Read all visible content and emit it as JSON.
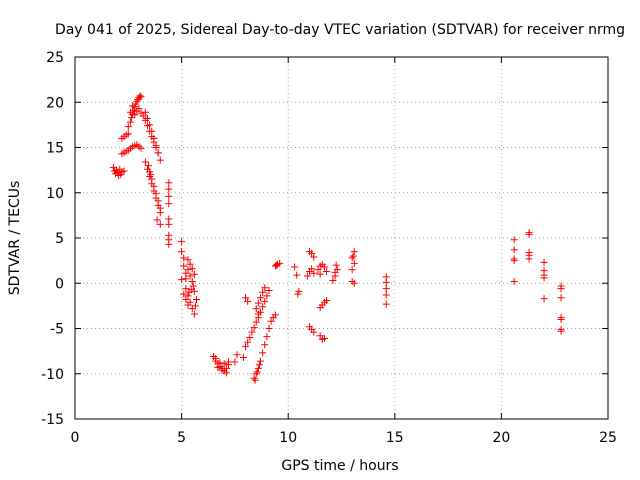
{
  "chart_data": {
    "type": "scatter",
    "title": "Day 041 of 2025, Sidereal Day-to-day VTEC variation (SDTVAR) for receiver nrmg",
    "xlabel": "GPS time / hours",
    "ylabel": "SDTVAR / TECUs",
    "xlim": [
      0,
      25
    ],
    "ylim": [
      -15,
      25
    ],
    "x_ticks": [
      0,
      5,
      10,
      15,
      20,
      25
    ],
    "y_ticks": [
      -15,
      -10,
      -5,
      0,
      5,
      10,
      15,
      20,
      25
    ],
    "x_tick_labels": [
      "0",
      "5",
      "10",
      "15",
      "20",
      "25"
    ],
    "y_tick_labels": [
      "-15",
      "-10",
      "-5",
      "0",
      "5",
      "10",
      "15",
      "20",
      "25"
    ],
    "grid": true,
    "marker": "plus",
    "colors": {
      "series": "#ff0000",
      "frame": "#000000",
      "grid": "#a0a0a0",
      "background": "#ffffff"
    },
    "series": [
      {
        "name": "SDTVAR",
        "points": [
          [
            1.8,
            12.8
          ],
          [
            1.85,
            12.4
          ],
          [
            1.9,
            12.1
          ],
          [
            1.95,
            12.5
          ],
          [
            2.0,
            12.2
          ],
          [
            2.05,
            11.9
          ],
          [
            2.1,
            12.6
          ],
          [
            2.15,
            12.0
          ],
          [
            2.2,
            12.3
          ],
          [
            2.3,
            12.4
          ],
          [
            2.2,
            14.3
          ],
          [
            2.3,
            14.4
          ],
          [
            2.4,
            14.6
          ],
          [
            2.5,
            14.7
          ],
          [
            2.6,
            14.9
          ],
          [
            2.7,
            15.1
          ],
          [
            2.8,
            15.2
          ],
          [
            2.9,
            15.3
          ],
          [
            3.0,
            15.1
          ],
          [
            3.1,
            14.9
          ],
          [
            2.2,
            16.0
          ],
          [
            2.3,
            16.2
          ],
          [
            2.4,
            16.4
          ],
          [
            2.5,
            16.5
          ],
          [
            2.5,
            17.3
          ],
          [
            2.6,
            17.8
          ],
          [
            2.65,
            18.3
          ],
          [
            2.7,
            18.7
          ],
          [
            2.75,
            19.1
          ],
          [
            2.8,
            19.5
          ],
          [
            2.85,
            19.8
          ],
          [
            2.9,
            20.1
          ],
          [
            2.95,
            20.3
          ],
          [
            3.0,
            20.5
          ],
          [
            3.05,
            20.7
          ],
          [
            3.1,
            20.6
          ],
          [
            2.6,
            18.9
          ],
          [
            2.7,
            19.6
          ],
          [
            2.8,
            18.6
          ],
          [
            2.9,
            19.0
          ],
          [
            3.0,
            19.3
          ],
          [
            3.1,
            18.8
          ],
          [
            3.2,
            18.5
          ],
          [
            3.3,
            18.0
          ],
          [
            3.4,
            17.4
          ],
          [
            3.5,
            16.8
          ],
          [
            3.6,
            16.2
          ],
          [
            3.7,
            15.6
          ],
          [
            3.8,
            15.0
          ],
          [
            3.9,
            14.4
          ],
          [
            3.3,
            18.9
          ],
          [
            3.4,
            18.2
          ],
          [
            3.5,
            17.5
          ],
          [
            3.6,
            16.8
          ],
          [
            3.7,
            16.0
          ],
          [
            3.8,
            15.2
          ],
          [
            3.9,
            14.4
          ],
          [
            4.0,
            13.6
          ],
          [
            3.3,
            13.4
          ],
          [
            3.4,
            12.6
          ],
          [
            3.5,
            11.8
          ],
          [
            3.6,
            11.0
          ],
          [
            3.7,
            10.2
          ],
          [
            3.8,
            9.4
          ],
          [
            3.9,
            8.6
          ],
          [
            4.0,
            7.8
          ],
          [
            3.85,
            7.0
          ],
          [
            4.0,
            6.5
          ],
          [
            3.5,
            12.3
          ],
          [
            3.6,
            11.5
          ],
          [
            3.7,
            10.7
          ],
          [
            3.8,
            9.9
          ],
          [
            3.9,
            9.1
          ],
          [
            4.0,
            8.3
          ],
          [
            3.45,
            13.0
          ],
          [
            3.55,
            12.0
          ],
          [
            4.4,
            11.1
          ],
          [
            4.4,
            10.4
          ],
          [
            4.4,
            9.6
          ],
          [
            4.4,
            8.8
          ],
          [
            4.4,
            7.1
          ],
          [
            4.4,
            6.5
          ],
          [
            4.4,
            5.3
          ],
          [
            4.4,
            4.8
          ],
          [
            4.4,
            4.3
          ],
          [
            5.0,
            4.6
          ],
          [
            5.0,
            3.5
          ],
          [
            5.1,
            2.8
          ],
          [
            5.1,
            1.9
          ],
          [
            5.2,
            1.1
          ],
          [
            5.0,
            0.4
          ],
          [
            5.2,
            -0.6
          ],
          [
            5.3,
            -1.4
          ],
          [
            5.4,
            -2.1
          ],
          [
            5.5,
            -2.8
          ],
          [
            5.6,
            -3.4
          ],
          [
            5.3,
            2.6
          ],
          [
            5.4,
            2.1
          ],
          [
            5.5,
            1.6
          ],
          [
            5.6,
            1.0
          ],
          [
            5.5,
            0.2
          ],
          [
            5.6,
            -0.9
          ],
          [
            5.7,
            -1.8
          ],
          [
            5.65,
            -2.5
          ],
          [
            5.55,
            -0.3
          ],
          [
            5.1,
            -1.2
          ],
          [
            5.2,
            -1.8
          ],
          [
            5.3,
            -2.4
          ],
          [
            5.2,
            0.5
          ],
          [
            5.3,
            1.5
          ],
          [
            5.4,
            0.8
          ],
          [
            5.45,
            -0.7
          ],
          [
            5.35,
            -1.0
          ],
          [
            6.5,
            -8.1
          ],
          [
            6.6,
            -8.6
          ],
          [
            6.7,
            -8.9
          ],
          [
            6.8,
            -9.2
          ],
          [
            6.9,
            -9.4
          ],
          [
            7.0,
            -9.7
          ],
          [
            7.1,
            -9.4
          ],
          [
            7.2,
            -9.0
          ],
          [
            6.6,
            -8.3
          ],
          [
            6.8,
            -8.8
          ],
          [
            7.0,
            -8.9
          ],
          [
            7.2,
            -8.7
          ],
          [
            6.7,
            -9.3
          ],
          [
            6.9,
            -9.6
          ],
          [
            7.1,
            -9.9
          ],
          [
            7.5,
            -8.7
          ],
          [
            7.6,
            -7.9
          ],
          [
            7.9,
            -8.2
          ],
          [
            8.0,
            -7.0
          ],
          [
            8.1,
            -6.5
          ],
          [
            8.2,
            -6.0
          ],
          [
            8.3,
            -5.4
          ],
          [
            8.4,
            -4.9
          ],
          [
            8.5,
            -4.3
          ],
          [
            8.6,
            -3.8
          ],
          [
            8.7,
            -3.2
          ],
          [
            8.8,
            -2.6
          ],
          [
            8.9,
            -2.0
          ],
          [
            9.0,
            -1.4
          ],
          [
            9.1,
            -0.8
          ],
          [
            8.0,
            -1.6
          ],
          [
            8.1,
            -2.0
          ],
          [
            8.5,
            -2.8
          ],
          [
            8.6,
            -2.2
          ],
          [
            8.7,
            -1.6
          ],
          [
            8.8,
            -1.0
          ],
          [
            8.9,
            -0.5
          ],
          [
            8.6,
            -3.4
          ],
          [
            8.4,
            -10.5
          ],
          [
            8.5,
            -10.0
          ],
          [
            8.6,
            -9.4
          ],
          [
            8.7,
            -8.6
          ],
          [
            8.8,
            -7.7
          ],
          [
            8.9,
            -6.8
          ],
          [
            9.0,
            -5.9
          ],
          [
            9.1,
            -5.0
          ],
          [
            9.2,
            -4.2
          ],
          [
            9.3,
            -3.8
          ],
          [
            9.4,
            -3.5
          ],
          [
            8.45,
            -10.7
          ],
          [
            8.55,
            -9.8
          ],
          [
            8.65,
            -9.0
          ],
          [
            9.4,
            1.9
          ],
          [
            9.5,
            2.1
          ],
          [
            9.6,
            2.2
          ],
          [
            9.45,
            2.0
          ],
          [
            10.3,
            1.8
          ],
          [
            10.4,
            0.9
          ],
          [
            10.5,
            -0.9
          ],
          [
            10.45,
            -1.2
          ],
          [
            10.9,
            0.8
          ],
          [
            11.0,
            1.3
          ],
          [
            11.1,
            1.6
          ],
          [
            11.2,
            1.1
          ],
          [
            11.0,
            3.5
          ],
          [
            11.1,
            3.3
          ],
          [
            11.2,
            2.9
          ],
          [
            11.0,
            -4.8
          ],
          [
            11.1,
            -5.1
          ],
          [
            11.2,
            -5.4
          ],
          [
            11.5,
            -5.8
          ],
          [
            11.6,
            -6.2
          ],
          [
            11.7,
            -6.1
          ],
          [
            11.5,
            -2.7
          ],
          [
            11.6,
            -2.4
          ],
          [
            11.7,
            -2.1
          ],
          [
            11.8,
            -1.9
          ],
          [
            11.4,
            1.5
          ],
          [
            11.5,
            1.9
          ],
          [
            11.6,
            2.1
          ],
          [
            11.7,
            1.8
          ],
          [
            11.8,
            1.3
          ],
          [
            11.5,
            1.0
          ],
          [
            12.1,
            0.3
          ],
          [
            12.2,
            0.8
          ],
          [
            12.3,
            1.5
          ],
          [
            12.25,
            2.0
          ],
          [
            12.2,
            1.2
          ],
          [
            13.0,
            0.2
          ],
          [
            13.1,
            0.0
          ],
          [
            13.0,
            1.5
          ],
          [
            13.1,
            2.2
          ],
          [
            13.05,
            3.0
          ],
          [
            13.1,
            3.5
          ],
          [
            13.0,
            2.8
          ],
          [
            14.6,
            0.7
          ],
          [
            14.6,
            0.1
          ],
          [
            14.6,
            -0.6
          ],
          [
            14.6,
            -1.3
          ],
          [
            14.6,
            -2.3
          ],
          [
            20.6,
            4.8
          ],
          [
            20.6,
            3.7
          ],
          [
            20.6,
            2.7
          ],
          [
            20.6,
            2.5
          ],
          [
            20.6,
            0.2
          ],
          [
            21.3,
            5.6
          ],
          [
            21.3,
            5.4
          ],
          [
            21.3,
            3.4
          ],
          [
            21.3,
            3.1
          ],
          [
            21.3,
            2.7
          ],
          [
            22.0,
            2.3
          ],
          [
            22.0,
            1.4
          ],
          [
            22.0,
            0.9
          ],
          [
            22.0,
            0.6
          ],
          [
            22.0,
            -1.7
          ],
          [
            22.8,
            -0.3
          ],
          [
            22.8,
            -0.6
          ],
          [
            22.8,
            -1.6
          ],
          [
            22.8,
            -3.8
          ],
          [
            22.8,
            -4.0
          ],
          [
            22.8,
            -5.3
          ],
          [
            22.8,
            -5.1
          ]
        ]
      }
    ]
  }
}
